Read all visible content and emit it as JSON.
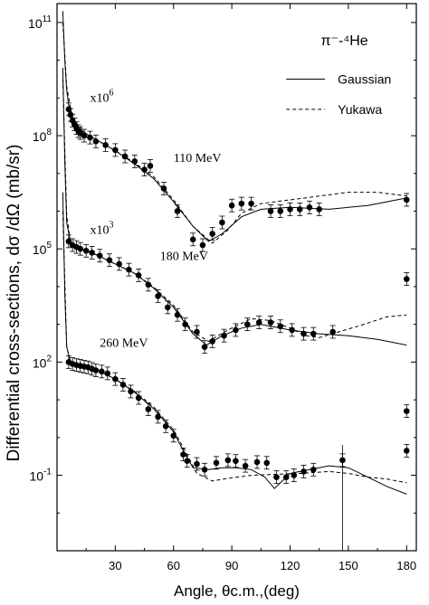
{
  "chart_data": {
    "type": "scatter",
    "title": "π⁻-⁴He",
    "xlabel": "Angle, θc.m.,(deg)",
    "ylabel": "Differential cross-sections, dσ /dΩ (mb/sr)",
    "xlim": [
      0,
      185
    ],
    "ylim_log10": [
      -3,
      11.5
    ],
    "x_ticks": [
      30,
      60,
      90,
      120,
      150,
      180
    ],
    "y_ticks": [
      {
        "label": "10",
        "exp": "-1",
        "value_log10": -1
      },
      {
        "label": "10",
        "exp": "2",
        "value_log10": 2
      },
      {
        "label": "10",
        "exp": "5",
        "value_log10": 5
      },
      {
        "label": "10",
        "exp": "8",
        "value_log10": 8
      },
      {
        "label": "10",
        "exp": "11",
        "value_log10": 11
      }
    ],
    "legend": {
      "placement": "top-right",
      "entries": [
        {
          "name": "Gaussian",
          "style": "solid"
        },
        {
          "name": "Yukawa",
          "style": "dashed"
        }
      ]
    },
    "annotations": [
      {
        "text": "110 MeV",
        "x": 60,
        "y_log10": 7.3
      },
      {
        "text": "180 MeV",
        "x": 53,
        "y_log10": 4.7
      },
      {
        "text": "260 MeV",
        "x": 22,
        "y_log10": 2.4
      },
      {
        "text": "x10",
        "sup": "6",
        "x": 17,
        "y_log10": 8.9
      },
      {
        "text": "x10",
        "sup": "3",
        "x": 17,
        "y_log10": 5.4
      }
    ],
    "series": [
      {
        "name": "110 MeV",
        "points": [
          [
            6,
            8.7
          ],
          [
            7,
            8.55
          ],
          [
            8,
            8.4
          ],
          [
            9,
            8.3
          ],
          [
            10,
            8.2
          ],
          [
            11,
            8.12
          ],
          [
            12,
            8.07
          ],
          [
            14,
            8.0
          ],
          [
            17,
            7.95
          ],
          [
            20,
            7.85
          ],
          [
            25,
            7.75
          ],
          [
            30,
            7.62
          ],
          [
            35,
            7.45
          ],
          [
            40,
            7.32
          ],
          [
            45,
            7.1
          ],
          [
            48,
            7.2
          ],
          [
            55,
            6.6
          ],
          [
            62,
            6.0
          ],
          [
            70,
            5.25
          ],
          [
            75,
            5.1
          ],
          [
            80,
            5.4
          ],
          [
            85,
            5.7
          ],
          [
            90,
            6.15
          ],
          [
            95,
            6.2
          ],
          [
            100,
            6.2
          ],
          [
            110,
            6.0
          ],
          [
            115,
            6.0
          ],
          [
            120,
            6.05
          ],
          [
            125,
            6.05
          ],
          [
            130,
            6.1
          ],
          [
            135,
            6.05
          ],
          [
            180,
            6.3
          ]
        ],
        "gaussian": [
          [
            3,
            11.3
          ],
          [
            4,
            10.0
          ],
          [
            5,
            9.2
          ],
          [
            6,
            8.8
          ],
          [
            8,
            8.45
          ],
          [
            10,
            8.25
          ],
          [
            15,
            8.05
          ],
          [
            20,
            7.9
          ],
          [
            30,
            7.6
          ],
          [
            40,
            7.25
          ],
          [
            50,
            6.85
          ],
          [
            60,
            6.25
          ],
          [
            70,
            5.6
          ],
          [
            78,
            5.2
          ],
          [
            85,
            5.4
          ],
          [
            95,
            5.85
          ],
          [
            105,
            6.05
          ],
          [
            120,
            6.1
          ],
          [
            140,
            6.05
          ],
          [
            160,
            6.15
          ],
          [
            180,
            6.35
          ]
        ],
        "yukawa": [
          [
            3,
            11.0
          ],
          [
            5,
            9.3
          ],
          [
            8,
            8.45
          ],
          [
            15,
            8.05
          ],
          [
            30,
            7.6
          ],
          [
            40,
            7.28
          ],
          [
            50,
            6.9
          ],
          [
            60,
            6.3
          ],
          [
            70,
            5.6
          ],
          [
            80,
            5.15
          ],
          [
            88,
            5.5
          ],
          [
            95,
            5.95
          ],
          [
            105,
            6.2
          ],
          [
            120,
            6.3
          ],
          [
            135,
            6.4
          ],
          [
            150,
            6.5
          ],
          [
            165,
            6.5
          ],
          [
            180,
            6.4
          ]
        ]
      },
      {
        "name": "180 MeV",
        "points": [
          [
            6,
            5.2
          ],
          [
            8,
            5.1
          ],
          [
            10,
            5.05
          ],
          [
            12,
            5.0
          ],
          [
            15,
            4.95
          ],
          [
            18,
            4.9
          ],
          [
            22,
            4.82
          ],
          [
            27,
            4.7
          ],
          [
            32,
            4.6
          ],
          [
            37,
            4.45
          ],
          [
            42,
            4.3
          ],
          [
            47,
            4.05
          ],
          [
            52,
            3.75
          ],
          [
            57,
            3.45
          ],
          [
            62,
            3.25
          ],
          [
            66,
            3.0
          ],
          [
            72,
            2.8
          ],
          [
            76,
            2.4
          ],
          [
            80,
            2.55
          ],
          [
            86,
            2.7
          ],
          [
            92,
            2.85
          ],
          [
            98,
            3.0
          ],
          [
            104,
            3.05
          ],
          [
            110,
            3.05
          ],
          [
            115,
            2.95
          ],
          [
            121,
            2.85
          ],
          [
            127,
            2.75
          ],
          [
            132,
            2.75
          ],
          [
            142,
            2.8
          ],
          [
            180,
            4.2
          ]
        ],
        "gaussian": [
          [
            3,
            9.8
          ],
          [
            4,
            7.3
          ],
          [
            5,
            5.7
          ],
          [
            7,
            5.15
          ],
          [
            10,
            5.05
          ],
          [
            20,
            4.85
          ],
          [
            30,
            4.6
          ],
          [
            40,
            4.35
          ],
          [
            50,
            3.95
          ],
          [
            60,
            3.45
          ],
          [
            70,
            2.75
          ],
          [
            77,
            2.45
          ],
          [
            85,
            2.7
          ],
          [
            95,
            2.9
          ],
          [
            105,
            3.0
          ],
          [
            120,
            2.85
          ],
          [
            135,
            2.75
          ],
          [
            150,
            2.7
          ],
          [
            165,
            2.6
          ],
          [
            180,
            2.45
          ]
        ],
        "yukawa": [
          [
            3,
            9.5
          ],
          [
            5,
            5.9
          ],
          [
            7,
            5.15
          ],
          [
            10,
            5.05
          ],
          [
            20,
            4.85
          ],
          [
            30,
            4.6
          ],
          [
            40,
            4.35
          ],
          [
            50,
            3.98
          ],
          [
            60,
            3.5
          ],
          [
            70,
            2.8
          ],
          [
            78,
            2.55
          ],
          [
            88,
            2.85
          ],
          [
            100,
            3.15
          ],
          [
            110,
            3.1
          ],
          [
            120,
            2.9
          ],
          [
            128,
            2.7
          ],
          [
            135,
            2.65
          ],
          [
            145,
            2.8
          ],
          [
            155,
            2.95
          ],
          [
            170,
            3.2
          ],
          [
            180,
            3.25
          ]
        ]
      },
      {
        "name": "260 MeV",
        "points": [
          [
            6,
            2.0
          ],
          [
            8,
            1.95
          ],
          [
            10,
            1.92
          ],
          [
            12,
            1.9
          ],
          [
            14,
            1.88
          ],
          [
            16,
            1.86
          ],
          [
            18,
            1.82
          ],
          [
            20,
            1.78
          ],
          [
            23,
            1.75
          ],
          [
            26,
            1.7
          ],
          [
            30,
            1.55
          ],
          [
            34,
            1.4
          ],
          [
            38,
            1.22
          ],
          [
            42,
            1.05
          ],
          [
            47,
            0.75
          ],
          [
            52,
            0.55
          ],
          [
            56,
            0.3
          ],
          [
            60,
            0.05
          ],
          [
            65,
            -0.45
          ],
          [
            67,
            -0.62
          ],
          [
            72,
            -0.7
          ],
          [
            76,
            -0.85
          ],
          [
            82,
            -0.67
          ],
          [
            88,
            -0.6
          ],
          [
            92,
            -0.62
          ],
          [
            97,
            -0.75
          ],
          [
            103,
            -0.65
          ],
          [
            108,
            -0.67
          ],
          [
            113,
            -1.05
          ],
          [
            118,
            -1.05
          ],
          [
            122,
            -1.0
          ],
          [
            127,
            -0.9
          ],
          [
            132,
            -0.85
          ],
          [
            147,
            -0.6
          ],
          [
            180,
            -0.35
          ],
          [
            180,
            0.7
          ]
        ],
        "gaussian": [
          [
            3,
            6.5
          ],
          [
            4,
            3.8
          ],
          [
            5,
            2.4
          ],
          [
            7,
            2.0
          ],
          [
            10,
            1.95
          ],
          [
            20,
            1.8
          ],
          [
            30,
            1.55
          ],
          [
            40,
            1.2
          ],
          [
            50,
            0.75
          ],
          [
            60,
            0.15
          ],
          [
            65,
            -0.35
          ],
          [
            70,
            -0.8
          ],
          [
            78,
            -0.85
          ],
          [
            85,
            -0.8
          ],
          [
            92,
            -0.8
          ],
          [
            100,
            -0.85
          ],
          [
            107,
            -1.05
          ],
          [
            112,
            -1.35
          ],
          [
            115,
            -1.2
          ],
          [
            120,
            -0.95
          ],
          [
            130,
            -0.85
          ],
          [
            140,
            -0.75
          ],
          [
            150,
            -0.8
          ],
          [
            160,
            -1.05
          ],
          [
            170,
            -1.3
          ],
          [
            180,
            -1.5
          ]
        ],
        "yukawa": [
          [
            3,
            6.0
          ],
          [
            5,
            2.4
          ],
          [
            7,
            2.0
          ],
          [
            10,
            1.95
          ],
          [
            20,
            1.8
          ],
          [
            30,
            1.55
          ],
          [
            40,
            1.22
          ],
          [
            50,
            0.8
          ],
          [
            60,
            0.2
          ],
          [
            67,
            -0.45
          ],
          [
            72,
            -0.95
          ],
          [
            80,
            -1.15
          ],
          [
            88,
            -1.08
          ],
          [
            100,
            -1.0
          ],
          [
            110,
            -0.98
          ],
          [
            125,
            -0.95
          ],
          [
            140,
            -0.9
          ],
          [
            150,
            -0.95
          ],
          [
            160,
            -1.05
          ],
          [
            170,
            -1.1
          ],
          [
            180,
            -1.2
          ]
        ]
      }
    ]
  }
}
